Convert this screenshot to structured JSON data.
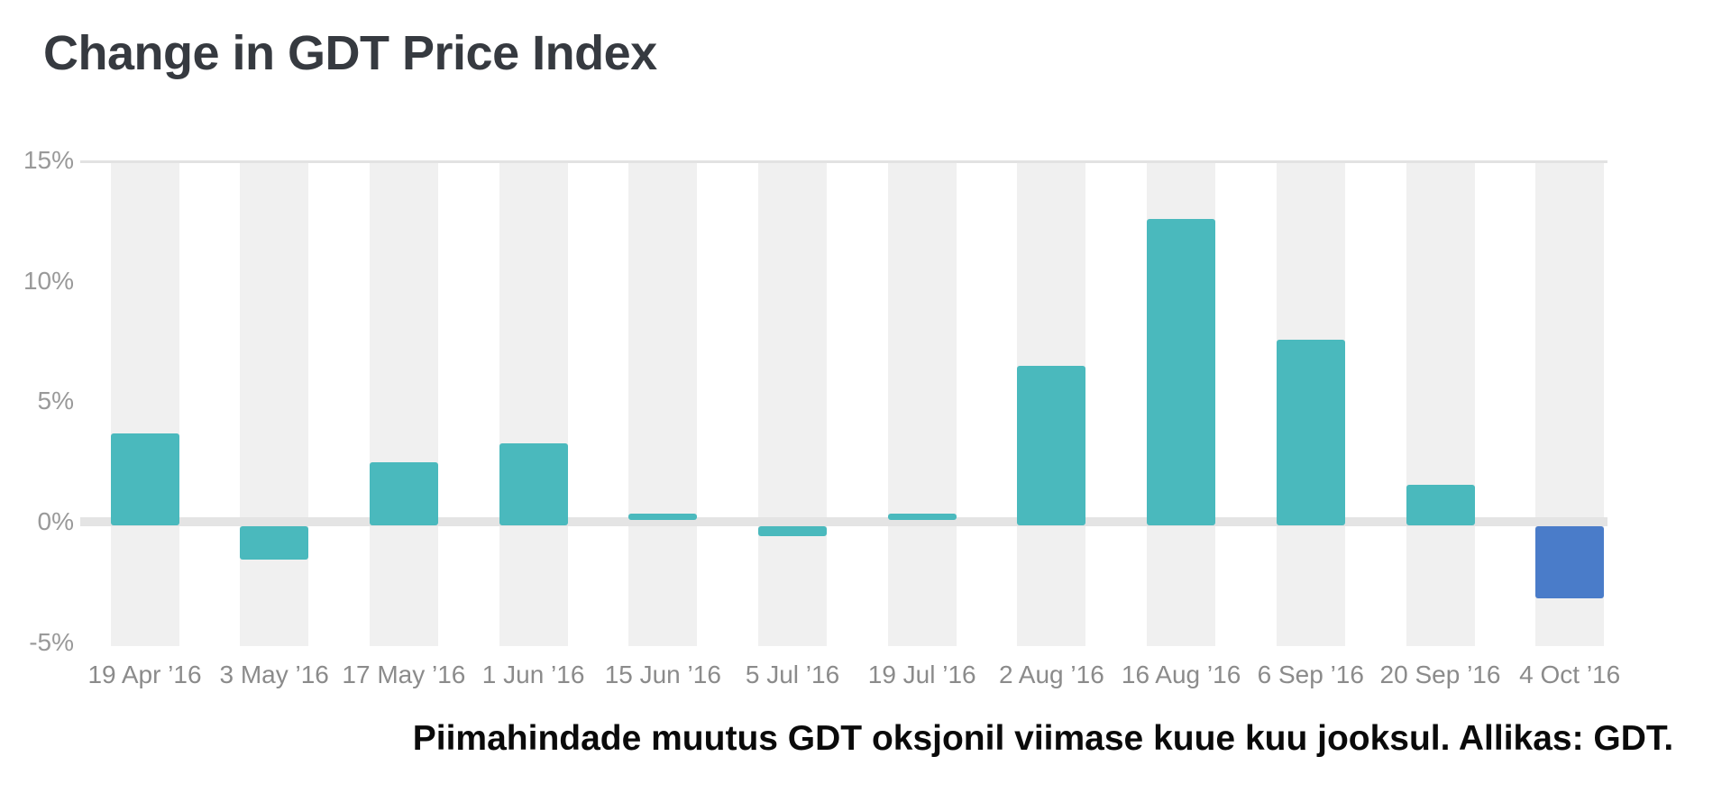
{
  "title": "Change in GDT Price Index",
  "caption": "Piimahindade muutus GDT oksjonil viimase kuue kuu jooksul. Allikas: GDT.",
  "colors": {
    "bar_teal": "#4ab9bd",
    "bar_blue": "#4a7cc9",
    "stripe": "#f0f0f0",
    "zero_line": "#e4e4e4",
    "top_grid_line": "#e2e2e2",
    "title_text": "#363a40",
    "y_label_text": "#999999",
    "x_label_text": "#8b8b8b",
    "caption_text": "#0a0a0a",
    "background": "#ffffff"
  },
  "chart_data": {
    "type": "bar",
    "title": "Change in GDT Price Index",
    "categories": [
      "19 Apr ’16",
      "3 May ’16",
      "17 May ’16",
      "1 Jun ’16",
      "15 Jun ’16",
      "5 Jul ’16",
      "19 Jul ’16",
      "2 Aug ’16",
      "16 Aug ’16",
      "6 Sep ’16",
      "20 Sep ’16",
      "4 Oct ’16"
    ],
    "values": [
      3.8,
      -1.4,
      2.6,
      3.4,
      0.0,
      -0.4,
      0.0,
      6.6,
      12.7,
      7.7,
      1.7,
      -3.0
    ],
    "unit": "%",
    "xlabel": "",
    "ylabel": "",
    "ylim": [
      -5,
      15
    ],
    "yticks": [
      {
        "label": "15%",
        "value": 15
      },
      {
        "label": "10%",
        "value": 10
      },
      {
        "label": "5%",
        "value": 5
      },
      {
        "label": "0%",
        "value": 0
      },
      {
        "label": "-5%",
        "value": -5
      }
    ],
    "highlight_index": 11,
    "legend": "none",
    "grid": "thin horizontal line at 15%, thick light baseline at 0%, light vertical stripe behind each bar"
  }
}
